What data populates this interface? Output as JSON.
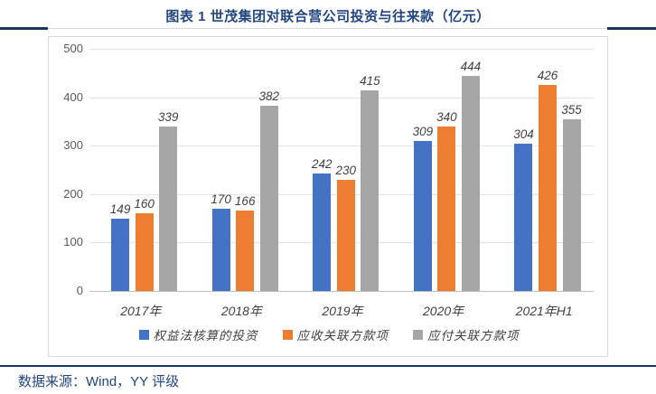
{
  "header": {
    "title": "图表 1 世茂集团对联合营公司投资与往来款（亿元）"
  },
  "footer": {
    "source": "数据来源：Wind，YY 评级"
  },
  "colors": {
    "navy_text": "#23467E",
    "navy_rule": "#17375E",
    "gridline": "#E3E3E3",
    "axis_baseline": "#BFBFBF",
    "tick_label": "#595959",
    "value_label": "#3F3F3F"
  },
  "chart_data": {
    "type": "bar",
    "title": "图表 1 世茂集团对联合营公司投资与往来款（亿元）",
    "categories": [
      "2017年",
      "2018年",
      "2019年",
      "2020年",
      "2021年H1"
    ],
    "series": [
      {
        "name": "权益法核算的投资",
        "color": "#4472C4",
        "values": [
          149,
          170,
          242,
          309,
          304
        ]
      },
      {
        "name": "应收关联方款项",
        "color": "#ED7D31",
        "values": [
          160,
          166,
          230,
          340,
          426
        ]
      },
      {
        "name": "应付关联方款项",
        "color": "#A6A6A6",
        "values": [
          339,
          382,
          415,
          444,
          355
        ]
      }
    ],
    "xlabel": "",
    "ylabel": "",
    "ylim": [
      0,
      500
    ],
    "yticks": [
      0,
      100,
      200,
      300,
      400,
      500
    ],
    "grid": true,
    "legend_position": "bottom",
    "show_value_labels": true
  }
}
